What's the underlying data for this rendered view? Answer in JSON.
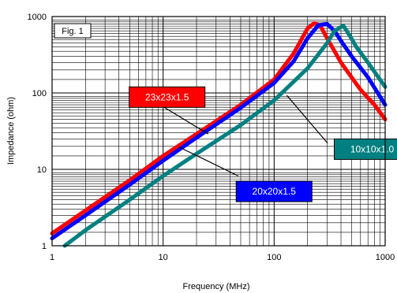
{
  "chart_data": {
    "type": "line",
    "x_scale": "log",
    "y_scale": "log",
    "xlim": [
      1,
      1000
    ],
    "ylim": [
      1,
      1000
    ],
    "grid": true,
    "xlabel": "Frequency (MHz)",
    "ylabel": "Impedance (ohm)",
    "fig_label": "Fig. 1",
    "x_ticks": [
      {
        "value": 1,
        "label": "1"
      },
      {
        "value": 10,
        "label": "10"
      },
      {
        "value": 100,
        "label": "100"
      },
      {
        "value": 1000,
        "label": "1000"
      }
    ],
    "y_ticks": [
      {
        "value": 1,
        "label": "1"
      },
      {
        "value": 10,
        "label": "10"
      },
      {
        "value": 100,
        "label": "100"
      },
      {
        "value": 1000,
        "label": "1000"
      }
    ],
    "series": [
      {
        "name": "23x23x1.5",
        "color": "#ff0000",
        "label_bg": "#ff0000",
        "label_color": "#ffffff",
        "points": [
          [
            1,
            1.45
          ],
          [
            2,
            2.9
          ],
          [
            5,
            7.2
          ],
          [
            10,
            15
          ],
          [
            20,
            29
          ],
          [
            50,
            70
          ],
          [
            100,
            150
          ],
          [
            150,
            330
          ],
          [
            200,
            700
          ],
          [
            230,
            820
          ],
          [
            260,
            760
          ],
          [
            300,
            520
          ],
          [
            400,
            250
          ],
          [
            600,
            110
          ],
          [
            800,
            70
          ],
          [
            1000,
            45
          ]
        ]
      },
      {
        "name": "20x20x1.5",
        "color": "#0000ff",
        "label_bg": "#0000ff",
        "label_color": "#ffffff",
        "points": [
          [
            1,
            1.25
          ],
          [
            2,
            2.5
          ],
          [
            5,
            6.3
          ],
          [
            10,
            13
          ],
          [
            20,
            26
          ],
          [
            50,
            64
          ],
          [
            100,
            135
          ],
          [
            150,
            260
          ],
          [
            200,
            520
          ],
          [
            250,
            770
          ],
          [
            300,
            800
          ],
          [
            350,
            650
          ],
          [
            400,
            480
          ],
          [
            500,
            300
          ],
          [
            700,
            160
          ],
          [
            1000,
            70
          ]
        ]
      },
      {
        "name": "10x10x1.0",
        "color": "#008080",
        "label_bg": "#008080",
        "label_color": "#ffffff",
        "points": [
          [
            1.3,
            1
          ],
          [
            2,
            1.6
          ],
          [
            5,
            4
          ],
          [
            10,
            8.2
          ],
          [
            20,
            16
          ],
          [
            50,
            38
          ],
          [
            100,
            80
          ],
          [
            200,
            210
          ],
          [
            300,
            450
          ],
          [
            350,
            650
          ],
          [
            420,
            760
          ],
          [
            480,
            560
          ],
          [
            550,
            400
          ],
          [
            700,
            250
          ],
          [
            1000,
            120
          ]
        ]
      }
    ],
    "annotations": [
      {
        "series": "23x23x1.5",
        "box_at": [
          4.95,
          120
        ],
        "leader_from": [
          6.05,
          103
        ],
        "leader_to": [
          25.5,
          29
        ]
      },
      {
        "series": "20x20x1.5",
        "box_at": [
          45.5,
          7
        ],
        "leader_from": [
          47.5,
          8.2
        ],
        "leader_to": [
          14,
          19.5
        ]
      },
      {
        "series": "10x10x1.0",
        "box_at": [
          348,
          25
        ],
        "leader_from": [
          303,
          22
        ],
        "leader_to": [
          130,
          93
        ]
      }
    ]
  }
}
